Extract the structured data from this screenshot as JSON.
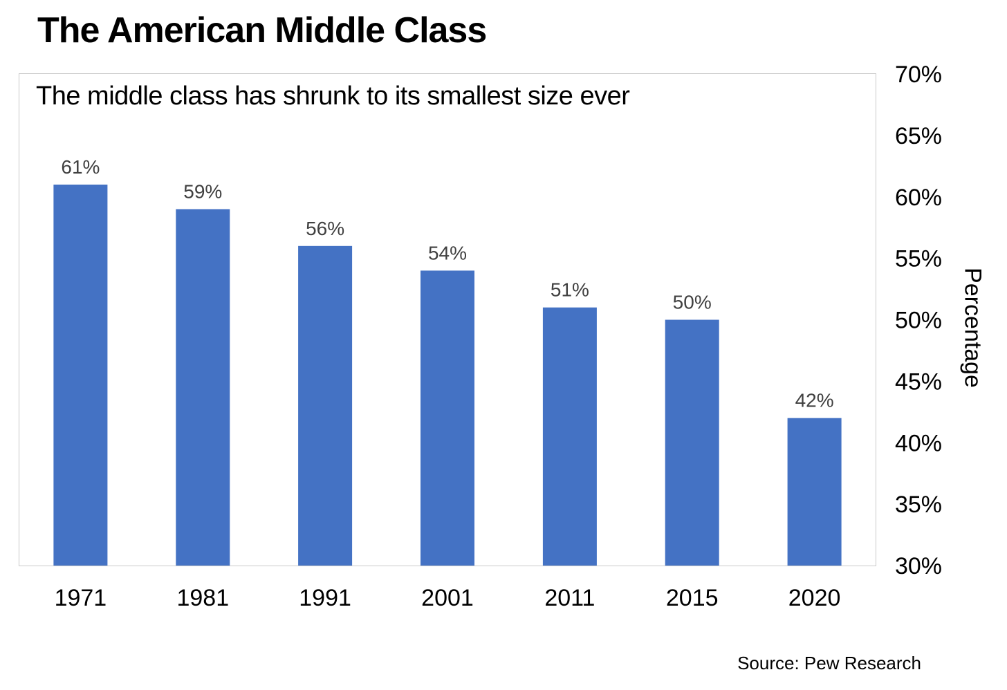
{
  "title": "The American Middle Class",
  "source": "Source: Pew Research",
  "colors": {
    "bar": "#4472c4",
    "frame": "#c8c8c8",
    "data_label": "#404040",
    "text": "#000000"
  },
  "chart_data": {
    "type": "bar",
    "title": "The middle class has shrunk to its smallest size ever",
    "xlabel": "",
    "ylabel": "Percentage",
    "categories": [
      "1971",
      "1981",
      "1991",
      "2001",
      "2011",
      "2015",
      "2020"
    ],
    "values": [
      61,
      59,
      56,
      54,
      51,
      50,
      42
    ],
    "data_labels": [
      "61%",
      "59%",
      "56%",
      "54%",
      "51%",
      "50%",
      "42%"
    ],
    "ylim": [
      30,
      70
    ],
    "y_ticks": [
      70,
      65,
      60,
      55,
      50,
      45,
      40,
      35,
      30
    ],
    "y_tick_labels": [
      "70%",
      "65%",
      "60%",
      "55%",
      "50%",
      "45%",
      "40%",
      "35%",
      "30%"
    ],
    "y_axis_side": "right",
    "grid": false,
    "legend": "none"
  }
}
